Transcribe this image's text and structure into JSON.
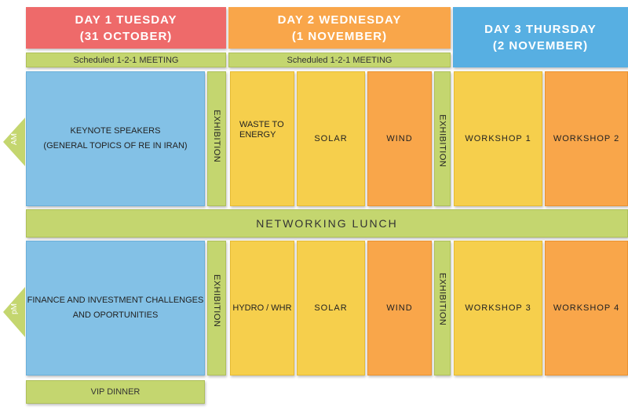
{
  "headers": {
    "day1": {
      "line1": "DAY 1 TUESDAY",
      "line2": "(31 OCTOBER)",
      "color": "#ee6a6a"
    },
    "day2": {
      "line1": "DAY 2 WEDNESDAY",
      "line2": "(1 NOVEMBER)",
      "color": "#f9a64a"
    },
    "day3": {
      "line1": "DAY 3 THURSDAY",
      "line2": "(2 NOVEMBER)",
      "color": "#57afe2"
    }
  },
  "meetings": {
    "day1": "Scheduled 1-2-1 MEETING",
    "day2": "Scheduled 1-2-1 MEETING"
  },
  "am": {
    "label": "AM",
    "keynote_line1": "KEYNOTE SPEAKERS",
    "keynote_line2": "(GENERAL TOPICS OF RE IN IRAN)",
    "exhibition1": "EXHIBITION",
    "waste_line1": "WASTE TO",
    "waste_line2": "ENERGY",
    "solar": "SOLAR",
    "wind": "WIND",
    "exhibition2": "EXHIBITION",
    "workshop1": "WORKSHOP 1",
    "workshop2": "WORKSHOP 2"
  },
  "lunch": "NETWORKING LUNCH",
  "pm": {
    "label": "pM",
    "finance_line1": "FINANCE AND INVESTMENT CHALLENGES",
    "finance_line2": "AND OPORTUNITIES",
    "exhibition1": "EXHIBITION",
    "hydro": "HYDRO / WHR",
    "solar": "SOLAR",
    "wind": "WIND",
    "exhibition2": "EXHIBITION",
    "workshop3": "WORKSHOP 3",
    "workshop4": "WORKSHOP 4"
  },
  "vip": "VIP DINNER"
}
